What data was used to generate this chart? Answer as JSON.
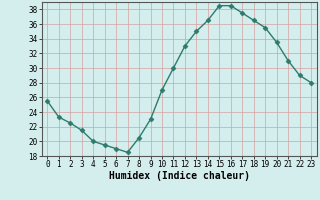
{
  "x": [
    0,
    1,
    2,
    3,
    4,
    5,
    6,
    7,
    8,
    9,
    10,
    11,
    12,
    13,
    14,
    15,
    16,
    17,
    18,
    19,
    20,
    21,
    22,
    23
  ],
  "y": [
    25.5,
    23.3,
    22.5,
    21.5,
    20.0,
    19.5,
    19.0,
    18.5,
    20.5,
    23.0,
    27.0,
    30.0,
    33.0,
    35.0,
    36.5,
    38.5,
    38.5,
    37.5,
    36.5,
    35.5,
    33.5,
    31.0,
    29.0,
    28.0
  ],
  "line_color": "#2e7b6e",
  "marker": "D",
  "marker_size": 2.5,
  "line_width": 1.0,
  "bg_color": "#d4eeee",
  "grid_color_major": "#c8b8b8",
  "grid_color_minor": "#e0d0d0",
  "xlabel": "Humidex (Indice chaleur)",
  "ylim": [
    18,
    39
  ],
  "xlim": [
    -0.5,
    23.5
  ],
  "yticks": [
    18,
    20,
    22,
    24,
    26,
    28,
    30,
    32,
    34,
    36,
    38
  ],
  "xticks": [
    0,
    1,
    2,
    3,
    4,
    5,
    6,
    7,
    8,
    9,
    10,
    11,
    12,
    13,
    14,
    15,
    16,
    17,
    18,
    19,
    20,
    21,
    22,
    23
  ],
  "tick_fontsize": 5.5,
  "xlabel_fontsize": 7.0,
  "font_family": "monospace"
}
